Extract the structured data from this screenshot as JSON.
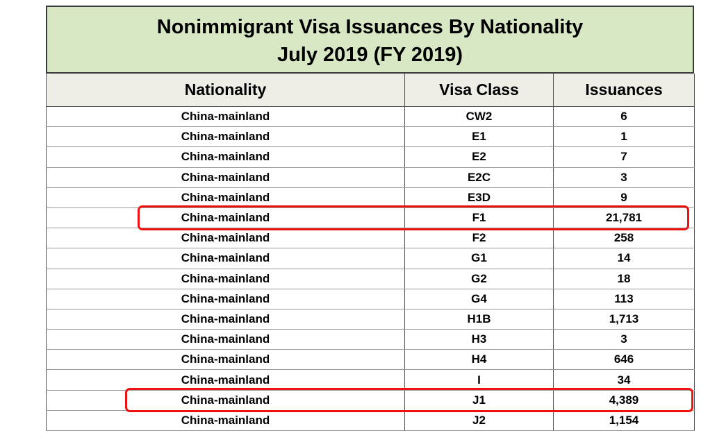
{
  "report": {
    "title_line1": "Nonimmigrant Visa Issuances By Nationality",
    "title_line2": "July 2019 (FY 2019)"
  },
  "table": {
    "headers": [
      "Nationality",
      "Visa Class",
      "Issuances"
    ],
    "rows": [
      {
        "nationality": "China-mainland",
        "visa_class": "CW2",
        "issuances": "6",
        "highlighted": false
      },
      {
        "nationality": "China-mainland",
        "visa_class": "E1",
        "issuances": "1",
        "highlighted": false
      },
      {
        "nationality": "China-mainland",
        "visa_class": "E2",
        "issuances": "7",
        "highlighted": false
      },
      {
        "nationality": "China-mainland",
        "visa_class": "E2C",
        "issuances": "3",
        "highlighted": false
      },
      {
        "nationality": "China-mainland",
        "visa_class": "E3D",
        "issuances": "9",
        "highlighted": false
      },
      {
        "nationality": "China-mainland",
        "visa_class": "F1",
        "issuances": "21,781",
        "highlighted": true
      },
      {
        "nationality": "China-mainland",
        "visa_class": "F2",
        "issuances": "258",
        "highlighted": false
      },
      {
        "nationality": "China-mainland",
        "visa_class": "G1",
        "issuances": "14",
        "highlighted": false
      },
      {
        "nationality": "China-mainland",
        "visa_class": "G2",
        "issuances": "18",
        "highlighted": false
      },
      {
        "nationality": "China-mainland",
        "visa_class": "G4",
        "issuances": "113",
        "highlighted": false
      },
      {
        "nationality": "China-mainland",
        "visa_class": "H1B",
        "issuances": "1,713",
        "highlighted": false
      },
      {
        "nationality": "China-mainland",
        "visa_class": "H3",
        "issuances": "3",
        "highlighted": false
      },
      {
        "nationality": "China-mainland",
        "visa_class": "H4",
        "issuances": "646",
        "highlighted": false
      },
      {
        "nationality": "China-mainland",
        "visa_class": "I",
        "issuances": "34",
        "highlighted": false
      },
      {
        "nationality": "China-mainland",
        "visa_class": "J1",
        "issuances": "4,389",
        "highlighted": true
      },
      {
        "nationality": "China-mainland",
        "visa_class": "J2",
        "issuances": "1,154",
        "highlighted": false
      }
    ]
  },
  "colors": {
    "title_bg": "#d8e8c4",
    "header_bg": "#eeeee6",
    "highlight": "#ee1111"
  }
}
